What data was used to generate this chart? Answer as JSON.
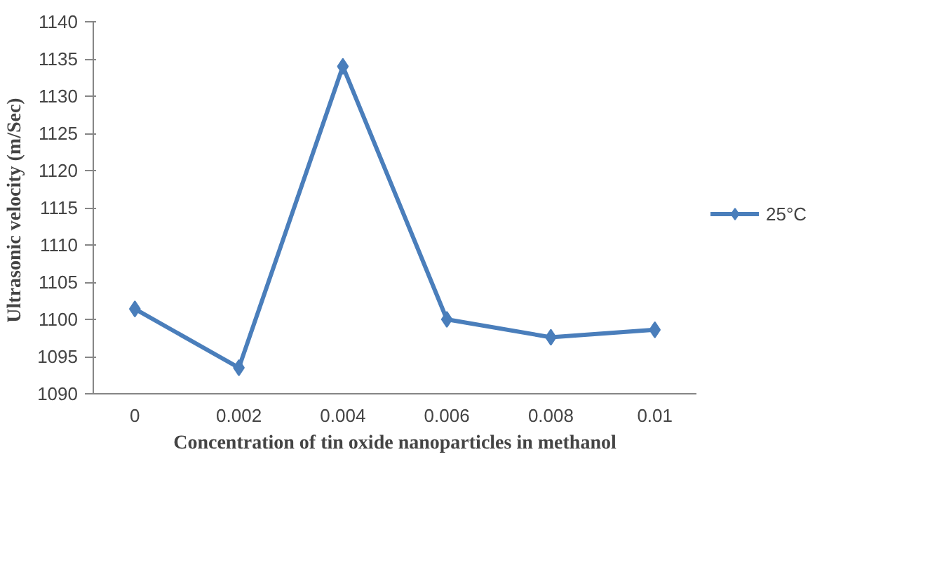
{
  "chart_data": {
    "type": "line",
    "xlabel": "Concentration of tin oxide nanoparticles in methanol",
    "ylabel": "Ultrasonic velocity  (m/Sec)",
    "x": [
      0,
      0.002,
      0.004,
      0.006,
      0.008,
      0.01
    ],
    "series": [
      {
        "name": "25°C",
        "color": "#4a7ebb",
        "values": [
          1101.4,
          1093.5,
          1134,
          1100,
          1097.6,
          1098.6
        ]
      }
    ],
    "xlim": [
      -0.0008,
      0.0108
    ],
    "xticks": [
      0,
      0.002,
      0.004,
      0.006,
      0.008,
      0.01
    ],
    "ylim": [
      1090,
      1140
    ],
    "yticks": [
      1090,
      1095,
      1100,
      1105,
      1110,
      1115,
      1120,
      1125,
      1130,
      1135,
      1140
    ],
    "grid": false,
    "legend": "right",
    "marker": "diamond",
    "line_style": "solid"
  }
}
